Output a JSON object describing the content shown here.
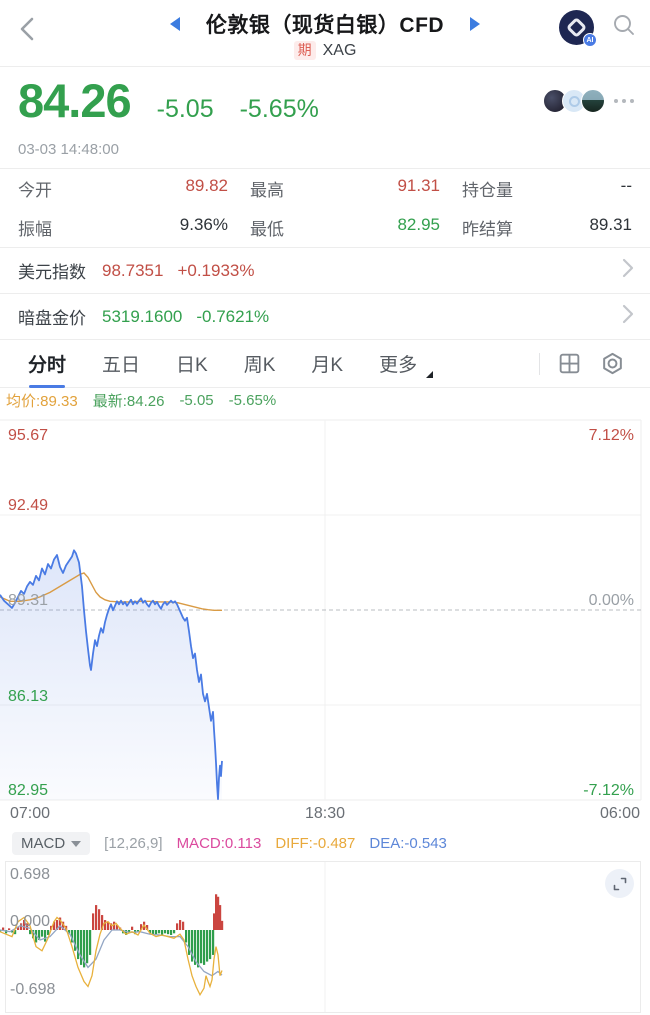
{
  "header": {
    "title": "伦敦银（现货白银）CFD",
    "market_badge": "期",
    "symbol": "XAG",
    "ai_badge": "AI"
  },
  "quote": {
    "price": "84.26",
    "change": "-5.05",
    "change_pct": "-5.65%",
    "timestamp": "03-03 14:48:00"
  },
  "stats": [
    {
      "label": "今开",
      "value": "89.82",
      "color": "#c14f46"
    },
    {
      "label": "最高",
      "value": "91.31",
      "color": "#c14f46"
    },
    {
      "label": "持仓量",
      "value": "--",
      "color": "#2e3338"
    },
    {
      "label": "振幅",
      "value": "9.36%",
      "color": "#2e3338"
    },
    {
      "label": "最低",
      "value": "82.95",
      "color": "#33a04e"
    },
    {
      "label": "昨结算",
      "value": "89.31",
      "color": "#2e3338"
    }
  ],
  "linked": [
    {
      "label": "美元指数",
      "value": "98.7351",
      "pct": "+0.1933%",
      "color": "#c14f46"
    },
    {
      "label": "暗盘金价",
      "value": "5319.1600",
      "pct": "-0.7621%",
      "color": "#33a04e"
    }
  ],
  "tabs": [
    {
      "label": "分时"
    },
    {
      "label": "五日"
    },
    {
      "label": "日K"
    },
    {
      "label": "周K"
    },
    {
      "label": "月K"
    },
    {
      "label": "更多"
    }
  ],
  "legend": {
    "avg": "均价:89.33",
    "latest": "最新:84.26",
    "chg": "-5.05",
    "pct": "-5.65%"
  },
  "indicator_bar": {
    "selector": "MACD",
    "params": "[12,26,9]",
    "macd": "MACD:0.113",
    "diff": "DIFF:-0.487",
    "dea": "DEA:-0.543"
  },
  "colors": {
    "up": "#c14f46",
    "down": "#33a04e",
    "accent": "#4a7be4",
    "price_line": "#4a7be4",
    "avg_line": "#d99b45",
    "hist_up": "#cb4540",
    "hist_down": "#2f9e4c",
    "diff_line": "#e8b13c",
    "dea_line": "#93a6c4"
  },
  "chart_data": {
    "intraday": {
      "type": "line",
      "title": "分时",
      "ylim": [
        82.95,
        95.67
      ],
      "prev_close": 89.31,
      "y_left": [
        "95.67",
        "92.49",
        "89.31",
        "86.13",
        "82.95"
      ],
      "y_right": [
        "7.12%",
        "0.00%",
        "-7.12%"
      ],
      "x_ticks": [
        "07:00",
        "18:30",
        "06:00"
      ],
      "grid": "on",
      "series": [
        {
          "name": "price",
          "points": [
            [
              0,
              89.82
            ],
            [
              4,
              89.62
            ],
            [
              8,
              89.5
            ],
            [
              12,
              89.38
            ],
            [
              15,
              89.55
            ],
            [
              18,
              89.75
            ],
            [
              21,
              89.95
            ],
            [
              24,
              89.85
            ],
            [
              27,
              90.1
            ],
            [
              30,
              90.25
            ],
            [
              33,
              90.15
            ],
            [
              36,
              90.45
            ],
            [
              39,
              90.3
            ],
            [
              42,
              90.7
            ],
            [
              45,
              90.5
            ],
            [
              48,
              90.85
            ],
            [
              51,
              90.7
            ],
            [
              54,
              91.0
            ],
            [
              57,
              91.15
            ],
            [
              60,
              90.75
            ],
            [
              63,
              90.55
            ],
            [
              66,
              90.8
            ],
            [
              69,
              90.95
            ],
            [
              72,
              91.1
            ],
            [
              74,
              91.31
            ],
            [
              76,
              91.2
            ],
            [
              79,
              90.9
            ],
            [
              82,
              90.1
            ],
            [
              84,
              89.3
            ],
            [
              86,
              88.6
            ],
            [
              88,
              88.0
            ],
            [
              90,
              87.45
            ],
            [
              91,
              87.3
            ],
            [
              93,
              87.85
            ],
            [
              95,
              88.3
            ],
            [
              97,
              88.1
            ],
            [
              99,
              88.45
            ],
            [
              101,
              88.7
            ],
            [
              103,
              88.55
            ],
            [
              105,
              88.9
            ],
            [
              107,
              89.15
            ],
            [
              109,
              89.35
            ],
            [
              111,
              89.5
            ],
            [
              113,
              89.3
            ],
            [
              115,
              89.45
            ],
            [
              117,
              89.6
            ],
            [
              119,
              89.5
            ],
            [
              121,
              89.62
            ],
            [
              123,
              89.5
            ],
            [
              125,
              89.58
            ],
            [
              127,
              89.45
            ],
            [
              129,
              89.55
            ],
            [
              131,
              89.65
            ],
            [
              133,
              89.5
            ],
            [
              135,
              89.6
            ],
            [
              137,
              89.52
            ],
            [
              139,
              89.62
            ],
            [
              141,
              89.7
            ],
            [
              143,
              89.55
            ],
            [
              145,
              89.62
            ],
            [
              147,
              89.5
            ],
            [
              149,
              89.42
            ],
            [
              151,
              89.55
            ],
            [
              153,
              89.62
            ],
            [
              155,
              89.5
            ],
            [
              157,
              89.58
            ],
            [
              159,
              89.45
            ],
            [
              161,
              89.35
            ],
            [
              163,
              89.5
            ],
            [
              165,
              89.58
            ],
            [
              167,
              89.48
            ],
            [
              169,
              89.55
            ],
            [
              171,
              89.62
            ],
            [
              173,
              89.55
            ],
            [
              175,
              89.6
            ],
            [
              177,
              89.5
            ],
            [
              179,
              89.35
            ],
            [
              181,
              89.2
            ],
            [
              183,
              89.05
            ],
            [
              185,
              88.95
            ],
            [
              187,
              89.05
            ],
            [
              189,
              88.6
            ],
            [
              191,
              88.1
            ],
            [
              193,
              87.7
            ],
            [
              195,
              87.85
            ],
            [
              197,
              87.3
            ],
            [
              199,
              86.9
            ],
            [
              201,
              87.15
            ],
            [
              203,
              86.5
            ],
            [
              205,
              86.25
            ],
            [
              207,
              86.5
            ],
            [
              209,
              86.05
            ],
            [
              211,
              85.6
            ],
            [
              213,
              85.9
            ],
            [
              214,
              85.3
            ],
            [
              215,
              84.8
            ],
            [
              216,
              84.2
            ],
            [
              217,
              83.5
            ],
            [
              218,
              82.98
            ],
            [
              219,
              83.7
            ],
            [
              220,
              84.1
            ],
            [
              221,
              83.75
            ],
            [
              222,
              84.26
            ]
          ]
        },
        {
          "name": "avg",
          "points": [
            [
              0,
              89.75
            ],
            [
              10,
              89.6
            ],
            [
              20,
              89.6
            ],
            [
              30,
              89.65
            ],
            [
              40,
              89.75
            ],
            [
              50,
              89.9
            ],
            [
              60,
              90.1
            ],
            [
              70,
              90.3
            ],
            [
              80,
              90.5
            ],
            [
              84,
              90.55
            ],
            [
              88,
              90.4
            ],
            [
              92,
              90.15
            ],
            [
              96,
              89.9
            ],
            [
              100,
              89.75
            ],
            [
              105,
              89.65
            ],
            [
              110,
              89.6
            ],
            [
              120,
              89.58
            ],
            [
              130,
              89.58
            ],
            [
              140,
              89.6
            ],
            [
              150,
              89.6
            ],
            [
              160,
              89.58
            ],
            [
              170,
              89.58
            ],
            [
              178,
              89.55
            ],
            [
              184,
              89.5
            ],
            [
              190,
              89.45
            ],
            [
              196,
              89.4
            ],
            [
              202,
              89.35
            ],
            [
              208,
              89.32
            ],
            [
              214,
              89.3
            ],
            [
              222,
              89.3
            ]
          ]
        }
      ]
    },
    "macd": {
      "type": "bar",
      "title": "MACD",
      "ylim": [
        -0.698,
        0.698
      ],
      "y_ticks": [
        "0.698",
        "0.000",
        "-0.698"
      ],
      "histogram": [
        [
          0,
          -0.02
        ],
        [
          3,
          0.03
        ],
        [
          6,
          -0.04
        ],
        [
          9,
          0.02
        ],
        [
          12,
          -0.03
        ],
        [
          15,
          -0.05
        ],
        [
          18,
          0.04
        ],
        [
          21,
          0.08
        ],
        [
          24,
          0.12
        ],
        [
          27,
          0.08
        ],
        [
          30,
          -0.05
        ],
        [
          33,
          -0.1
        ],
        [
          36,
          -0.15
        ],
        [
          39,
          -0.12
        ],
        [
          42,
          -0.08
        ],
        [
          45,
          -0.14
        ],
        [
          48,
          -0.06
        ],
        [
          51,
          0.05
        ],
        [
          54,
          0.1
        ],
        [
          57,
          0.12
        ],
        [
          60,
          0.15
        ],
        [
          63,
          0.1
        ],
        [
          66,
          0.05
        ],
        [
          69,
          -0.05
        ],
        [
          72,
          -0.15
        ],
        [
          75,
          -0.25
        ],
        [
          78,
          -0.35
        ],
        [
          81,
          -0.42
        ],
        [
          84,
          -0.45
        ],
        [
          87,
          -0.4
        ],
        [
          90,
          -0.3
        ],
        [
          93,
          0.2
        ],
        [
          96,
          0.3
        ],
        [
          99,
          0.25
        ],
        [
          102,
          0.18
        ],
        [
          105,
          0.12
        ],
        [
          108,
          0.1
        ],
        [
          111,
          0.08
        ],
        [
          114,
          0.1
        ],
        [
          117,
          0.06
        ],
        [
          120,
          0.03
        ],
        [
          123,
          -0.04
        ],
        [
          126,
          -0.06
        ],
        [
          129,
          -0.04
        ],
        [
          132,
          0.04
        ],
        [
          135,
          -0.05
        ],
        [
          138,
          -0.03
        ],
        [
          141,
          0.07
        ],
        [
          144,
          0.1
        ],
        [
          147,
          0.06
        ],
        [
          150,
          -0.04
        ],
        [
          153,
          -0.06
        ],
        [
          156,
          -0.05
        ],
        [
          159,
          -0.04
        ],
        [
          162,
          -0.06
        ],
        [
          165,
          -0.04
        ],
        [
          168,
          -0.05
        ],
        [
          171,
          -0.06
        ],
        [
          174,
          -0.04
        ],
        [
          177,
          0.08
        ],
        [
          180,
          0.12
        ],
        [
          183,
          0.1
        ],
        [
          186,
          -0.15
        ],
        [
          189,
          -0.3
        ],
        [
          192,
          -0.38
        ],
        [
          195,
          -0.42
        ],
        [
          198,
          -0.45
        ],
        [
          201,
          -0.4
        ],
        [
          204,
          -0.42
        ],
        [
          207,
          -0.38
        ],
        [
          210,
          -0.35
        ],
        [
          213,
          -0.3
        ],
        [
          214,
          0.2
        ],
        [
          216,
          0.43
        ],
        [
          218,
          0.4
        ],
        [
          220,
          0.3
        ],
        [
          222,
          0.11
        ]
      ],
      "diff": [
        [
          0,
          -0.02
        ],
        [
          6,
          -0.05
        ],
        [
          12,
          -0.08
        ],
        [
          18,
          0.1
        ],
        [
          24,
          0.15
        ],
        [
          30,
          0.05
        ],
        [
          36,
          -0.2
        ],
        [
          42,
          -0.25
        ],
        [
          48,
          -0.1
        ],
        [
          54,
          0.1
        ],
        [
          57,
          0.15
        ],
        [
          60,
          0.12
        ],
        [
          66,
          0.02
        ],
        [
          72,
          -0.2
        ],
        [
          78,
          -0.45
        ],
        [
          84,
          -0.62
        ],
        [
          88,
          -0.68
        ],
        [
          92,
          -0.55
        ],
        [
          96,
          -0.25
        ],
        [
          100,
          -0.05
        ],
        [
          104,
          0.08
        ],
        [
          108,
          0.1
        ],
        [
          112,
          0.05
        ],
        [
          116,
          0.08
        ],
        [
          120,
          0.02
        ],
        [
          126,
          -0.05
        ],
        [
          132,
          -0.02
        ],
        [
          138,
          -0.06
        ],
        [
          144,
          0.06
        ],
        [
          150,
          -0.04
        ],
        [
          156,
          -0.08
        ],
        [
          162,
          -0.06
        ],
        [
          168,
          -0.08
        ],
        [
          174,
          -0.1
        ],
        [
          180,
          -0.05
        ],
        [
          184,
          -0.12
        ],
        [
          188,
          -0.35
        ],
        [
          192,
          -0.55
        ],
        [
          196,
          -0.68
        ],
        [
          200,
          -0.78
        ],
        [
          204,
          -0.7
        ],
        [
          206,
          -0.55
        ],
        [
          208,
          -0.62
        ],
        [
          210,
          -0.68
        ],
        [
          212,
          -0.6
        ],
        [
          214,
          -0.35
        ],
        [
          216,
          -0.2
        ],
        [
          218,
          -0.3
        ],
        [
          220,
          -0.55
        ],
        [
          222,
          -0.487
        ]
      ],
      "dea": [
        [
          0,
          0
        ],
        [
          10,
          -0.02
        ],
        [
          20,
          0.05
        ],
        [
          30,
          0.02
        ],
        [
          40,
          -0.12
        ],
        [
          50,
          -0.08
        ],
        [
          60,
          0.05
        ],
        [
          70,
          -0.05
        ],
        [
          80,
          -0.3
        ],
        [
          88,
          -0.45
        ],
        [
          96,
          -0.35
        ],
        [
          104,
          -0.12
        ],
        [
          112,
          0.0
        ],
        [
          120,
          0.0
        ],
        [
          130,
          -0.03
        ],
        [
          140,
          -0.02
        ],
        [
          150,
          -0.05
        ],
        [
          160,
          -0.06
        ],
        [
          170,
          -0.08
        ],
        [
          180,
          -0.08
        ],
        [
          188,
          -0.2
        ],
        [
          196,
          -0.38
        ],
        [
          204,
          -0.5
        ],
        [
          212,
          -0.55
        ],
        [
          218,
          -0.5
        ],
        [
          222,
          -0.543
        ]
      ]
    }
  }
}
